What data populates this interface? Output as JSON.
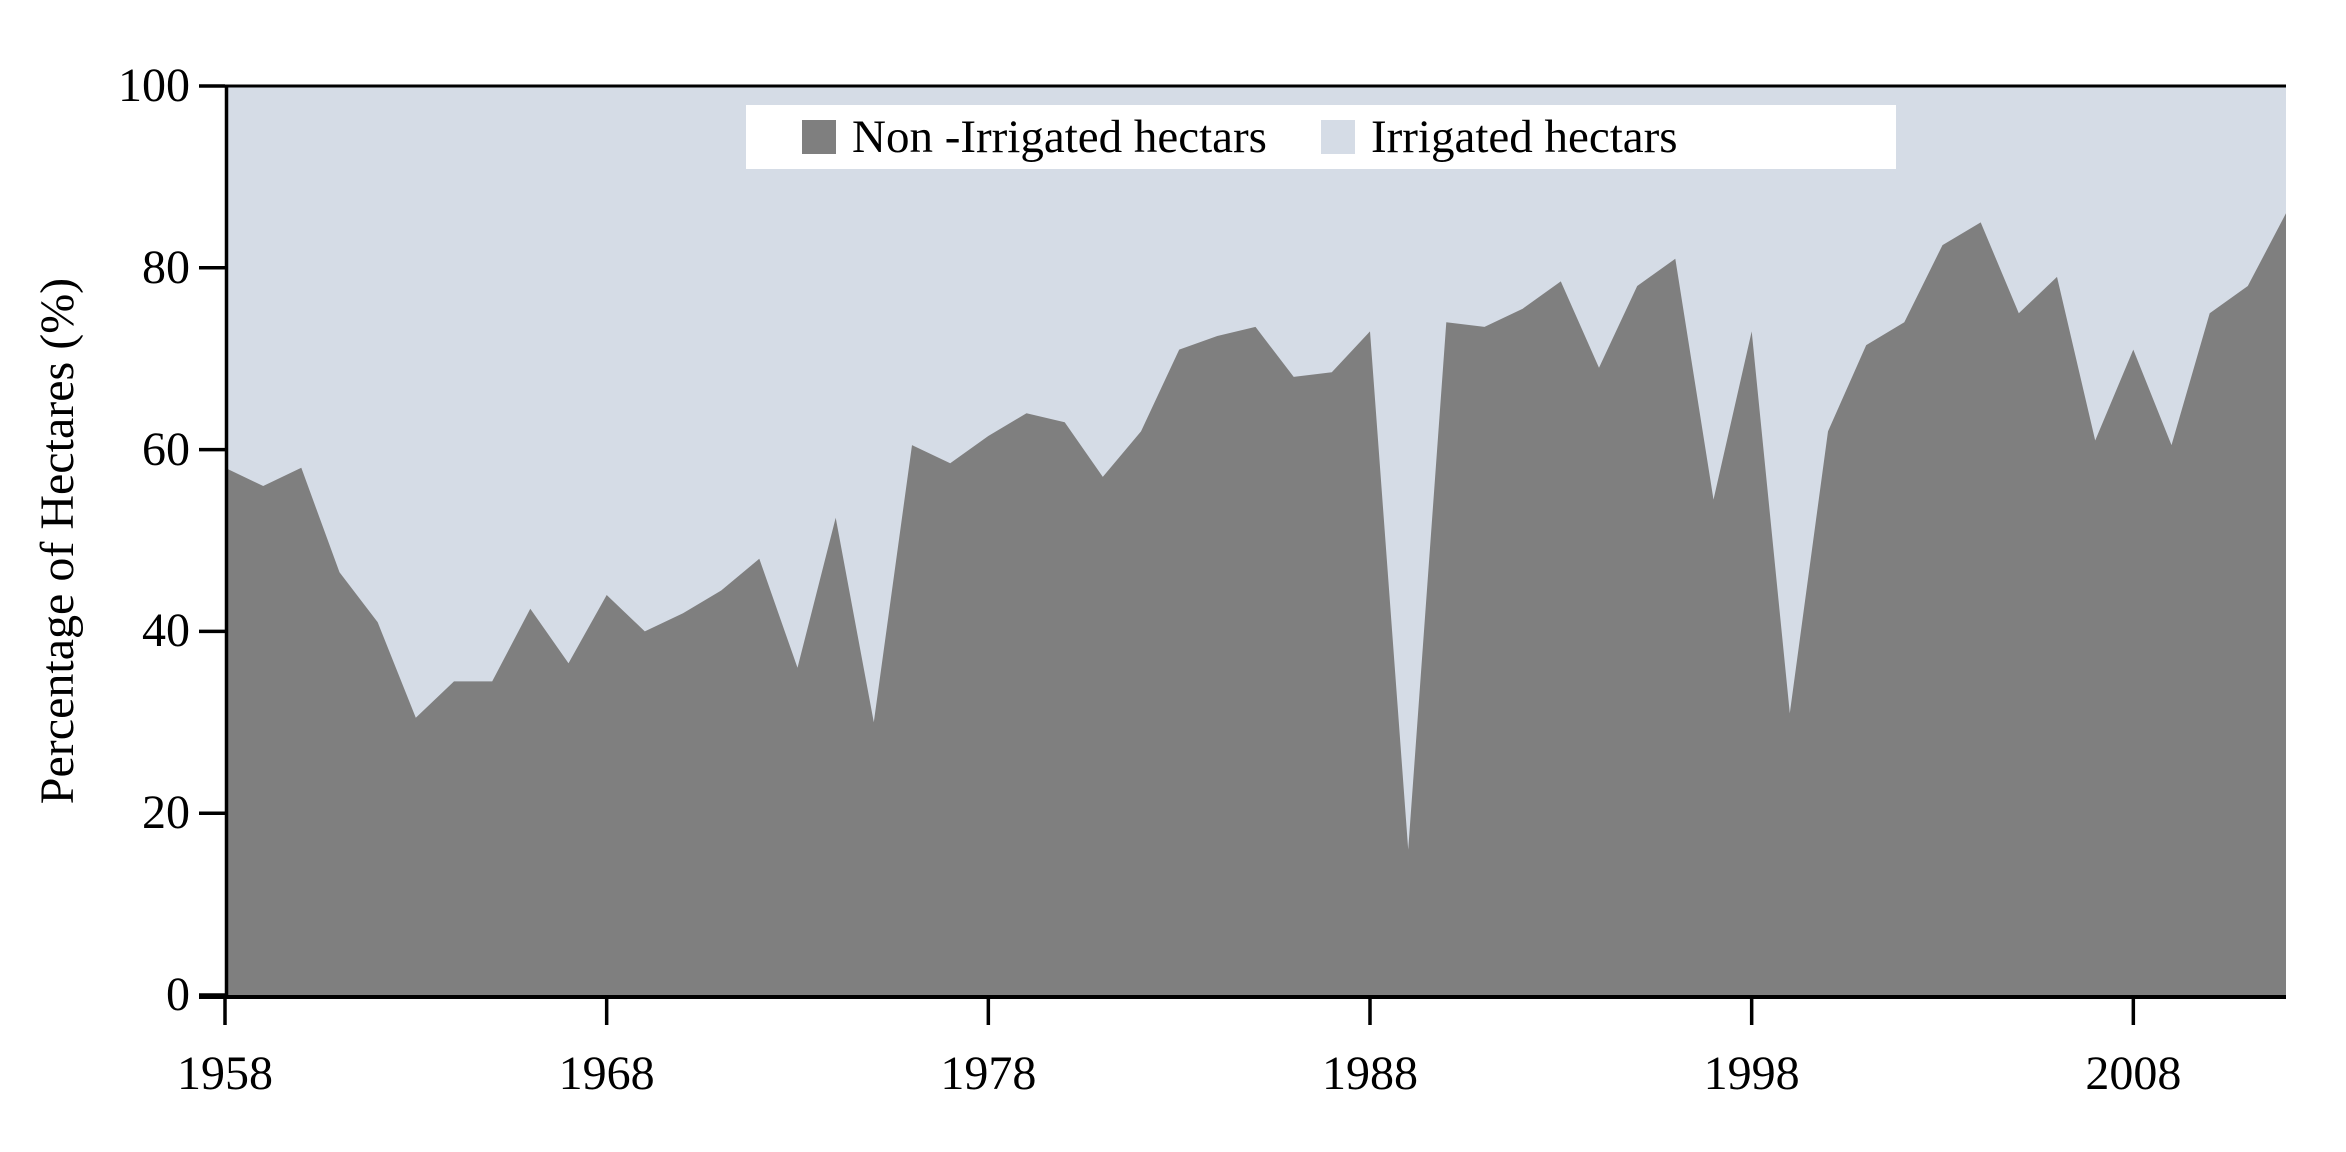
{
  "figure": {
    "y_axis_title": "Percentage of Hectares (%)"
  },
  "chart_data": {
    "type": "area",
    "stacking": "percent",
    "title": "",
    "xlabel": "",
    "ylabel": "Percentage of Hectares (%)",
    "grid": false,
    "legend_position": "top-center",
    "xlim": [
      1958,
      2012
    ],
    "ylim": [
      0,
      100
    ],
    "x_ticks": [
      1958,
      1968,
      1978,
      1988,
      1998,
      2008
    ],
    "y_ticks": [
      0,
      20,
      40,
      60,
      80,
      100
    ],
    "x": [
      1958,
      1959,
      1960,
      1961,
      1962,
      1963,
      1964,
      1965,
      1966,
      1967,
      1968,
      1969,
      1970,
      1971,
      1972,
      1973,
      1974,
      1975,
      1976,
      1977,
      1978,
      1979,
      1980,
      1981,
      1982,
      1983,
      1984,
      1985,
      1986,
      1987,
      1988,
      1989,
      1990,
      1991,
      1992,
      1993,
      1994,
      1995,
      1996,
      1997,
      1998,
      1999,
      2000,
      2001,
      2002,
      2003,
      2004,
      2005,
      2006,
      2007,
      2008,
      2009,
      2010,
      2011,
      2012
    ],
    "series": [
      {
        "name": "Non -Irrigated hectars",
        "color": "#7f7f7f",
        "values": [
          58,
          56,
          58,
          46.5,
          41,
          30.5,
          34.5,
          34.5,
          42.5,
          36.5,
          44,
          40,
          42,
          44.5,
          48,
          36,
          52.5,
          30,
          60.5,
          58.5,
          61.5,
          64,
          63,
          57,
          62,
          71,
          72.5,
          73.5,
          68,
          68.5,
          73,
          16,
          74,
          73.5,
          75.5,
          78.5,
          69,
          78,
          81,
          54.5,
          73,
          31,
          62,
          71.5,
          74,
          82.5,
          85,
          75,
          79,
          61,
          71,
          60.5,
          75,
          78,
          86
        ]
      },
      {
        "name": "Irrigated hectars",
        "color": "#d5dce6",
        "values": [
          42,
          44,
          42,
          53.5,
          59,
          69.5,
          65.5,
          65.5,
          57.5,
          63.5,
          56,
          60,
          58,
          55.5,
          52,
          64,
          47.5,
          70,
          39.5,
          41.5,
          38.5,
          36,
          37,
          43,
          38,
          29,
          27.5,
          26.5,
          32,
          31.5,
          27,
          84,
          26,
          26.5,
          24.5,
          21.5,
          31,
          22,
          19,
          45.5,
          27,
          69,
          38,
          28.5,
          26,
          17.5,
          15,
          25,
          21,
          39,
          29,
          39.5,
          25,
          22,
          14
        ]
      }
    ],
    "axis_color": "#000000"
  }
}
